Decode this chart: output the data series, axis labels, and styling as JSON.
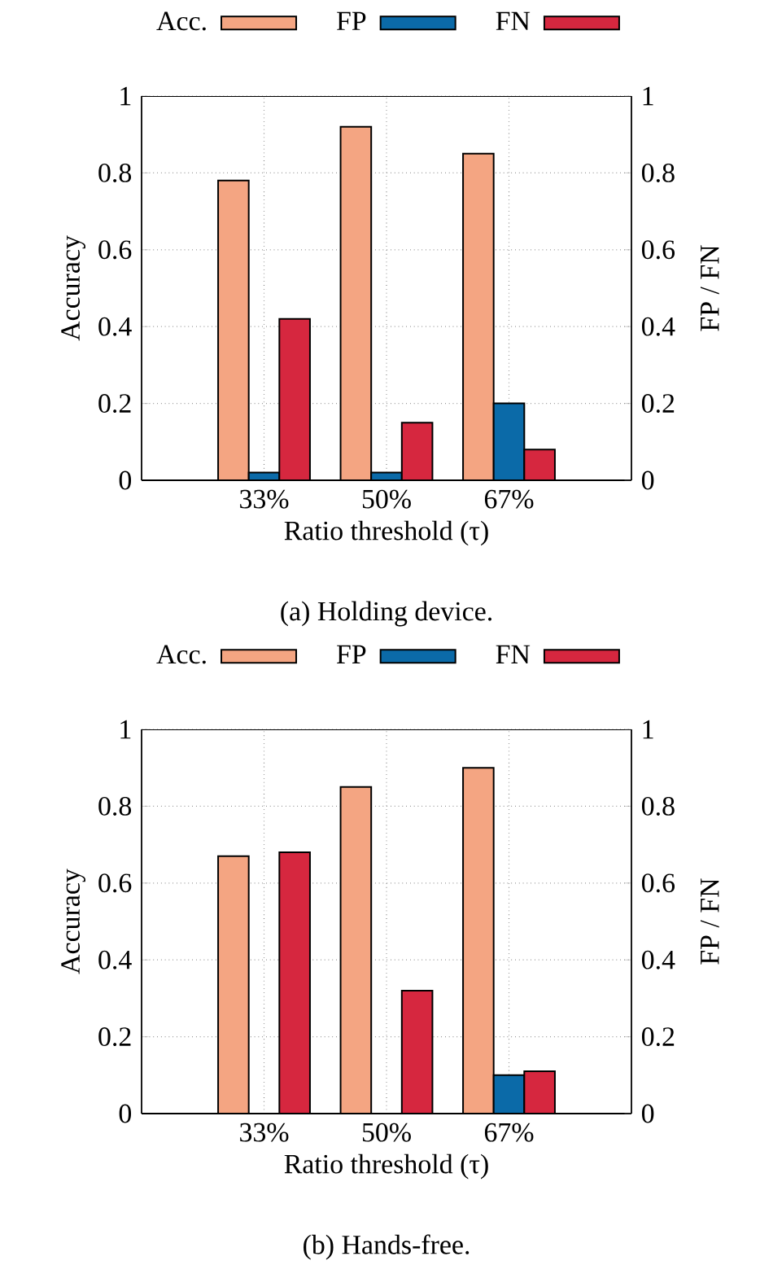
{
  "chart_data": [
    {
      "type": "bar",
      "categories": [
        "33%",
        "50%",
        "67%"
      ],
      "xlabel": "Ratio threshold (τ)",
      "ylabel": "Accuracy",
      "y2label": "FP / FN",
      "series": [
        {
          "name": "Acc.",
          "color": "#f4a582",
          "values": [
            0.78,
            0.92,
            0.85
          ]
        },
        {
          "name": "FP",
          "color": "#0b6aa8",
          "values": [
            0.02,
            0.02,
            0.2
          ]
        },
        {
          "name": "FN",
          "color": "#d6273f",
          "values": [
            0.42,
            0.15,
            0.08
          ]
        }
      ],
      "ylim": [
        0,
        1
      ],
      "yticks": [
        0,
        0.2,
        0.4,
        0.6,
        0.8,
        1
      ],
      "y2lim": [
        0,
        1
      ],
      "y2ticks": [
        0,
        0.2,
        0.4,
        0.6,
        0.8,
        1
      ],
      "grid": true,
      "legend": "top",
      "annotations": [
        "(a) Holding device."
      ]
    },
    {
      "type": "bar",
      "categories": [
        "33%",
        "50%",
        "67%"
      ],
      "xlabel": "Ratio threshold (τ)",
      "ylabel": "Accuracy",
      "y2label": "FP / FN",
      "series": [
        {
          "name": "Acc.",
          "color": "#f4a582",
          "values": [
            0.67,
            0.85,
            0.9
          ]
        },
        {
          "name": "FP",
          "color": "#0b6aa8",
          "values": [
            0,
            0,
            0.1
          ]
        },
        {
          "name": "FN",
          "color": "#d6273f",
          "values": [
            0.68,
            0.32,
            0.11
          ]
        }
      ],
      "ylim": [
        0,
        1
      ],
      "yticks": [
        0,
        0.2,
        0.4,
        0.6,
        0.8,
        1
      ],
      "y2lim": [
        0,
        1
      ],
      "y2ticks": [
        0,
        0.2,
        0.4,
        0.6,
        0.8,
        1
      ],
      "grid": true,
      "legend": "top",
      "annotations": [
        "(b) Hands-free."
      ]
    }
  ]
}
